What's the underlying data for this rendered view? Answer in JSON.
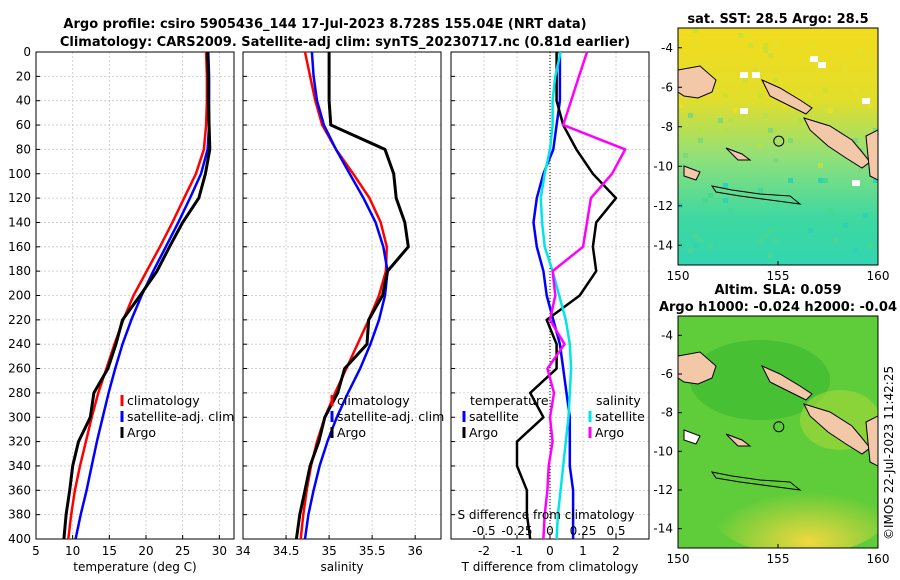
{
  "titles": {
    "line1": "Argo profile: csiro 5905436_144 17-Jul-2023 8.728S 155.04E (NRT data)",
    "line2": "Climatology: CARS2009. Satellite-adj clim: synTS_20230717.nc (0.81d earlier)",
    "map1": "sat. SST: 28.5 Argo: 28.5",
    "map2_line1": "Altim. SLA: 0.059",
    "map2_line2": "Argo h1000: -0.024 h2000: -0.04"
  },
  "copyright": "©IMOS 22-Jul-2023 11:42:25",
  "colors": {
    "climatology": "#ff0000",
    "satellite": "#0000ff",
    "argo": "#000000",
    "t_diff": "#00e5e5",
    "s_diff": "#ff00ff",
    "land": "#f2c8a8",
    "sst_high": "#f2dc1e",
    "sst_low": "#2fd9a8",
    "sla_base": "#5fcc3a",
    "sla_high": "#f0d840"
  },
  "chart_data": [
    {
      "type": "line",
      "id": "temperature",
      "xlabel": "temperature (deg C)",
      "ylabel": "",
      "xlim": [
        5,
        32
      ],
      "ylim": [
        400,
        0
      ],
      "xticks": [
        "5",
        "10",
        "15",
        "20",
        "25",
        "30"
      ],
      "xtick_values": [
        5,
        10,
        15,
        20,
        25,
        30
      ],
      "yticks": [
        "0",
        "20",
        "40",
        "60",
        "80",
        "100",
        "120",
        "140",
        "160",
        "180",
        "200",
        "220",
        "240",
        "260",
        "280",
        "300",
        "320",
        "340",
        "360",
        "380",
        "400"
      ],
      "ytick_values": [
        0,
        20,
        40,
        60,
        80,
        100,
        120,
        140,
        160,
        180,
        200,
        220,
        240,
        260,
        280,
        300,
        320,
        340,
        360,
        380,
        400
      ],
      "depth": [
        0,
        20,
        40,
        60,
        80,
        100,
        120,
        140,
        160,
        180,
        200,
        220,
        240,
        260,
        280,
        300,
        320,
        340,
        360,
        380,
        400
      ],
      "series": [
        {
          "name": "climatology",
          "values": [
            28.2,
            28.3,
            28.3,
            28.2,
            27.9,
            26.8,
            25.2,
            23.6,
            21.9,
            20.1,
            18.3,
            16.9,
            15.7,
            14.6,
            13.5,
            12.6,
            11.8,
            11.0,
            10.3,
            9.8,
            9.4
          ]
        },
        {
          "name": "satellite-adj. clim",
          "values": [
            28.5,
            28.6,
            28.6,
            28.6,
            28.4,
            27.5,
            26.0,
            24.4,
            22.7,
            21.0,
            19.4,
            18.0,
            16.8,
            15.8,
            14.9,
            14.1,
            13.3,
            12.6,
            11.9,
            11.1,
            10.4
          ]
        },
        {
          "name": "Argo",
          "values": [
            28.4,
            28.5,
            28.5,
            28.6,
            28.7,
            28.1,
            27.2,
            25.0,
            23.2,
            21.5,
            19.2,
            16.8,
            15.9,
            14.8,
            12.9,
            12.4,
            10.8,
            10.0,
            9.6,
            9.1,
            8.8
          ]
        }
      ],
      "legend": [
        "climatology",
        "satellite-adj. clim",
        "Argo"
      ]
    },
    {
      "type": "line",
      "id": "salinity",
      "xlabel": "salinity",
      "ylabel": "",
      "xlim": [
        34,
        36.3
      ],
      "ylim": [
        400,
        0
      ],
      "xticks": [
        "34",
        "34.5",
        "35",
        "35.5",
        "36"
      ],
      "xtick_values": [
        34,
        34.5,
        35,
        35.5,
        36
      ],
      "depth": [
        0,
        20,
        40,
        60,
        80,
        100,
        120,
        140,
        160,
        180,
        200,
        220,
        240,
        260,
        280,
        300,
        320,
        340,
        360,
        380,
        400
      ],
      "series": [
        {
          "name": "climatology",
          "values": [
            34.72,
            34.78,
            34.84,
            34.92,
            35.08,
            35.28,
            35.47,
            35.6,
            35.67,
            35.66,
            35.58,
            35.46,
            35.33,
            35.2,
            35.07,
            34.95,
            34.86,
            34.79,
            34.74,
            34.7,
            34.67
          ]
        },
        {
          "name": "satellite-adj. clim",
          "values": [
            34.8,
            34.82,
            34.86,
            34.94,
            35.08,
            35.24,
            35.4,
            35.54,
            35.63,
            35.68,
            35.65,
            35.58,
            35.48,
            35.36,
            35.22,
            35.09,
            34.98,
            34.89,
            34.82,
            34.76,
            34.72
          ]
        },
        {
          "name": "Argo",
          "values": [
            35.0,
            35.0,
            35.0,
            35.02,
            35.65,
            35.75,
            35.78,
            35.88,
            35.92,
            35.68,
            35.62,
            35.46,
            35.44,
            35.18,
            35.1,
            34.95,
            34.88,
            34.78,
            34.72,
            34.66,
            34.62
          ]
        }
      ],
      "legend": [
        "climatology",
        "satellite-adj. clim",
        "Argo"
      ]
    },
    {
      "type": "line",
      "id": "difference",
      "xlabel": "T difference from climatology",
      "xlabel_top": "S difference from climatology",
      "xlim": [
        -3,
        3
      ],
      "ylim": [
        400,
        0
      ],
      "xticks": [
        "-2",
        "-1",
        "0",
        "1",
        "2"
      ],
      "xtick_values": [
        -2,
        -1,
        0,
        1,
        2
      ],
      "s_xticks": [
        "-0.5",
        "-0.25",
        "0",
        "0.25",
        "0.5"
      ],
      "s_xtick_values": [
        -0.5,
        -0.25,
        0,
        0.25,
        0.5
      ],
      "s_scale": 4,
      "depth": [
        0,
        20,
        40,
        60,
        80,
        100,
        120,
        140,
        160,
        180,
        200,
        220,
        240,
        260,
        280,
        300,
        320,
        340,
        360,
        380,
        400
      ],
      "series": [
        {
          "name": "temperature (satellite)",
          "kind": "t",
          "values": [
            0.3,
            0.3,
            0.3,
            0.2,
            0.1,
            -0.2,
            -0.4,
            -0.5,
            -0.4,
            -0.2,
            -0.1,
            0.1,
            0.3,
            0.4,
            0.5,
            0.6,
            0.6,
            0.6,
            0.7,
            0.7,
            0.7
          ]
        },
        {
          "name": "temperature (Argo)",
          "kind": "t",
          "values": [
            0.2,
            0.2,
            0.2,
            0.4,
            0.8,
            1.3,
            2.0,
            1.4,
            1.3,
            1.4,
            0.9,
            -0.1,
            0.2,
            0.2,
            -0.6,
            -0.2,
            -1.0,
            -1.0,
            -0.7,
            -0.7,
            -0.6
          ]
        },
        {
          "name": "salinity (satellite)",
          "kind": "s",
          "values": [
            0.08,
            0.04,
            0.02,
            0.02,
            0.0,
            -0.04,
            -0.07,
            -0.06,
            -0.04,
            0.02,
            0.07,
            0.12,
            0.15,
            0.16,
            0.15,
            0.14,
            0.12,
            0.1,
            0.08,
            0.06,
            0.05
          ]
        },
        {
          "name": "salinity (Argo)",
          "kind": "s",
          "values": [
            0.28,
            0.22,
            0.16,
            0.1,
            0.57,
            0.47,
            0.31,
            0.28,
            0.25,
            0.02,
            0.04,
            0.0,
            0.11,
            -0.02,
            0.03,
            0.0,
            0.02,
            -0.01,
            -0.02,
            -0.04,
            -0.05
          ]
        }
      ],
      "legend_t": {
        "title": "temperature",
        "items": [
          "satellite",
          "Argo"
        ]
      },
      "legend_s": {
        "title": "salinity",
        "items": [
          "satellite",
          "Argo"
        ]
      }
    },
    {
      "type": "heatmap",
      "id": "sst-map",
      "xlim": [
        150,
        160
      ],
      "ylim": [
        -15,
        -3
      ],
      "xticks": [
        "150",
        "155",
        "160"
      ],
      "xtick_values": [
        150,
        155,
        160
      ],
      "yticks": [
        "-4",
        "-6",
        "-8",
        "-10",
        "-12",
        "-14"
      ],
      "ytick_values": [
        -4,
        -6,
        -8,
        -10,
        -12,
        -14
      ],
      "marker": {
        "lon": 155.04,
        "lat": -8.728
      }
    },
    {
      "type": "heatmap",
      "id": "sla-map",
      "xlim": [
        150,
        160
      ],
      "ylim": [
        -15,
        -3
      ],
      "xticks": [
        "150",
        "155",
        "160"
      ],
      "xtick_values": [
        150,
        155,
        160
      ],
      "yticks": [
        "-4",
        "-6",
        "-8",
        "-10",
        "-12",
        "-14"
      ],
      "ytick_values": [
        -4,
        -6,
        -8,
        -10,
        -12,
        -14
      ],
      "marker": {
        "lon": 155.04,
        "lat": -8.728
      }
    }
  ]
}
